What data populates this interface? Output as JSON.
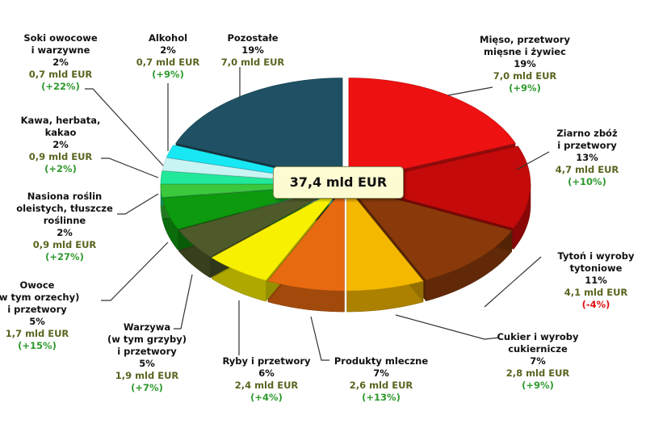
{
  "chart_data": {
    "type": "pie",
    "total_label": "37,4 mld EUR",
    "slices": [
      {
        "name": "Mięso, przetwory\nmięsne i żywiec",
        "percent": 19,
        "value": "7,0 mld EUR",
        "change": "(+9%)",
        "color": "#ee1111"
      },
      {
        "name": "Ziarno zbóż\ni przetwory",
        "percent": 13,
        "value": "4,7 mld EUR",
        "change": "(+10%)",
        "color": "#c40a0a"
      },
      {
        "name": "Tytoń i wyroby\ntytoniowe",
        "percent": 11,
        "value": "4,1 mld EUR",
        "change": "(-4%)",
        "color": "#8a3a0a"
      },
      {
        "name": "Cukier i wyroby\ncukiernicze",
        "percent": 7,
        "value": "2,8 mld EUR",
        "change": "(+9%)",
        "color": "#f5b800"
      },
      {
        "name": "Produkty mleczne",
        "percent": 7,
        "value": "2,6 mld EUR",
        "change": "(+13%)",
        "color": "#e86a10"
      },
      {
        "name": "Ryby i przetwory",
        "percent": 6,
        "value": "2,4 mld EUR",
        "change": "(+4%)",
        "color": "#f8f000"
      },
      {
        "name": "Warzywa\n(w tym grzyby)\ni przetwory",
        "percent": 5,
        "value": "1,9 mld EUR",
        "change": "(+7%)",
        "color": "#4e5a2a"
      },
      {
        "name": "Owoce\n(w tym orzechy)\ni przetwory",
        "percent": 5,
        "value": "1,7 mld EUR",
        "change": "(+15%)",
        "color": "#0e9a0e"
      },
      {
        "name": "Nasiona roślin\noleistych, tłuszcze\nroślinne",
        "percent": 2,
        "value": "0,9 mld EUR",
        "change": "(+27%)",
        "color": "#3cc83c"
      },
      {
        "name": "Kawa, herbata,\nkakao",
        "percent": 2,
        "value": "0,9 mld EUR",
        "change": "(+2%)",
        "color": "#22e89a"
      },
      {
        "name": "Soki owocowe\ni warzywne",
        "percent": 2,
        "value": "0,7 mld EUR",
        "change": "(+22%)",
        "color": "#c8f4f4"
      },
      {
        "name": "Alkohol",
        "percent": 2,
        "value": "0,7 mld EUR",
        "change": "(+9%)",
        "color": "#18e8f4"
      },
      {
        "name": "Pozostałe",
        "percent": 19,
        "value": "7,0 mld EUR",
        "change": "",
        "color": "#1f5063"
      }
    ]
  }
}
